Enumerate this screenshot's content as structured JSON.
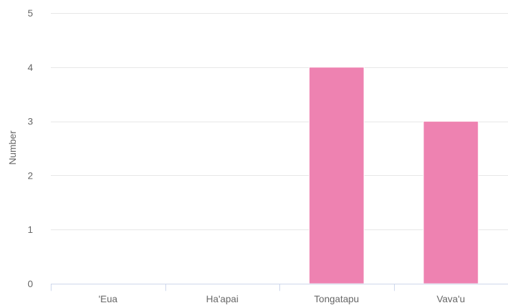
{
  "chart_data": {
    "type": "bar",
    "categories": [
      "'Eua",
      "Ha'apai",
      "Tongatapu",
      "Vava'u"
    ],
    "values": [
      0,
      0,
      4,
      3
    ],
    "ylabel": "Number",
    "xlabel": "",
    "ylim": [
      0,
      5
    ],
    "yticks": [
      0,
      1,
      2,
      3,
      4,
      5
    ],
    "grid": true,
    "bar_color": "#ee82b1",
    "legend": "none"
  }
}
